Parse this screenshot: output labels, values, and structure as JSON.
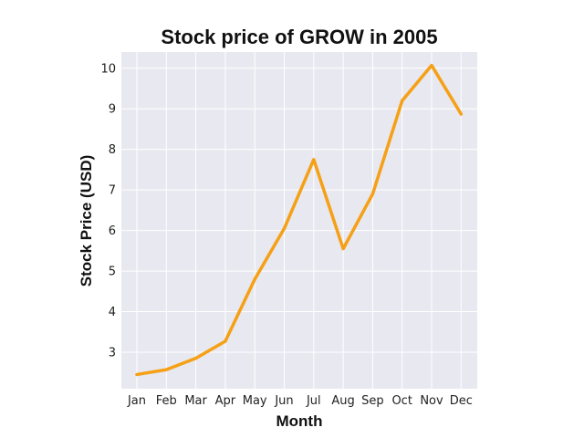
{
  "chart_data": {
    "type": "line",
    "title": "Stock price of GROW in 2005",
    "xlabel": "Month",
    "ylabel": "Stock Price (USD)",
    "categories": [
      "Jan",
      "Feb",
      "Mar",
      "Apr",
      "May",
      "Jun",
      "Jul",
      "Aug",
      "Sep",
      "Oct",
      "Nov",
      "Dec"
    ],
    "series": [
      {
        "values": [
          2.45,
          2.57,
          2.85,
          3.27,
          4.8,
          6.05,
          7.75,
          5.55,
          6.9,
          9.2,
          10.07,
          8.87
        ]
      }
    ],
    "yticks": [
      3,
      4,
      5,
      6,
      7,
      8,
      9,
      10
    ],
    "ylim": [
      2.1,
      10.4
    ],
    "grid": true,
    "line_color": "#f5a015",
    "background_color": "#e8e8f0"
  }
}
